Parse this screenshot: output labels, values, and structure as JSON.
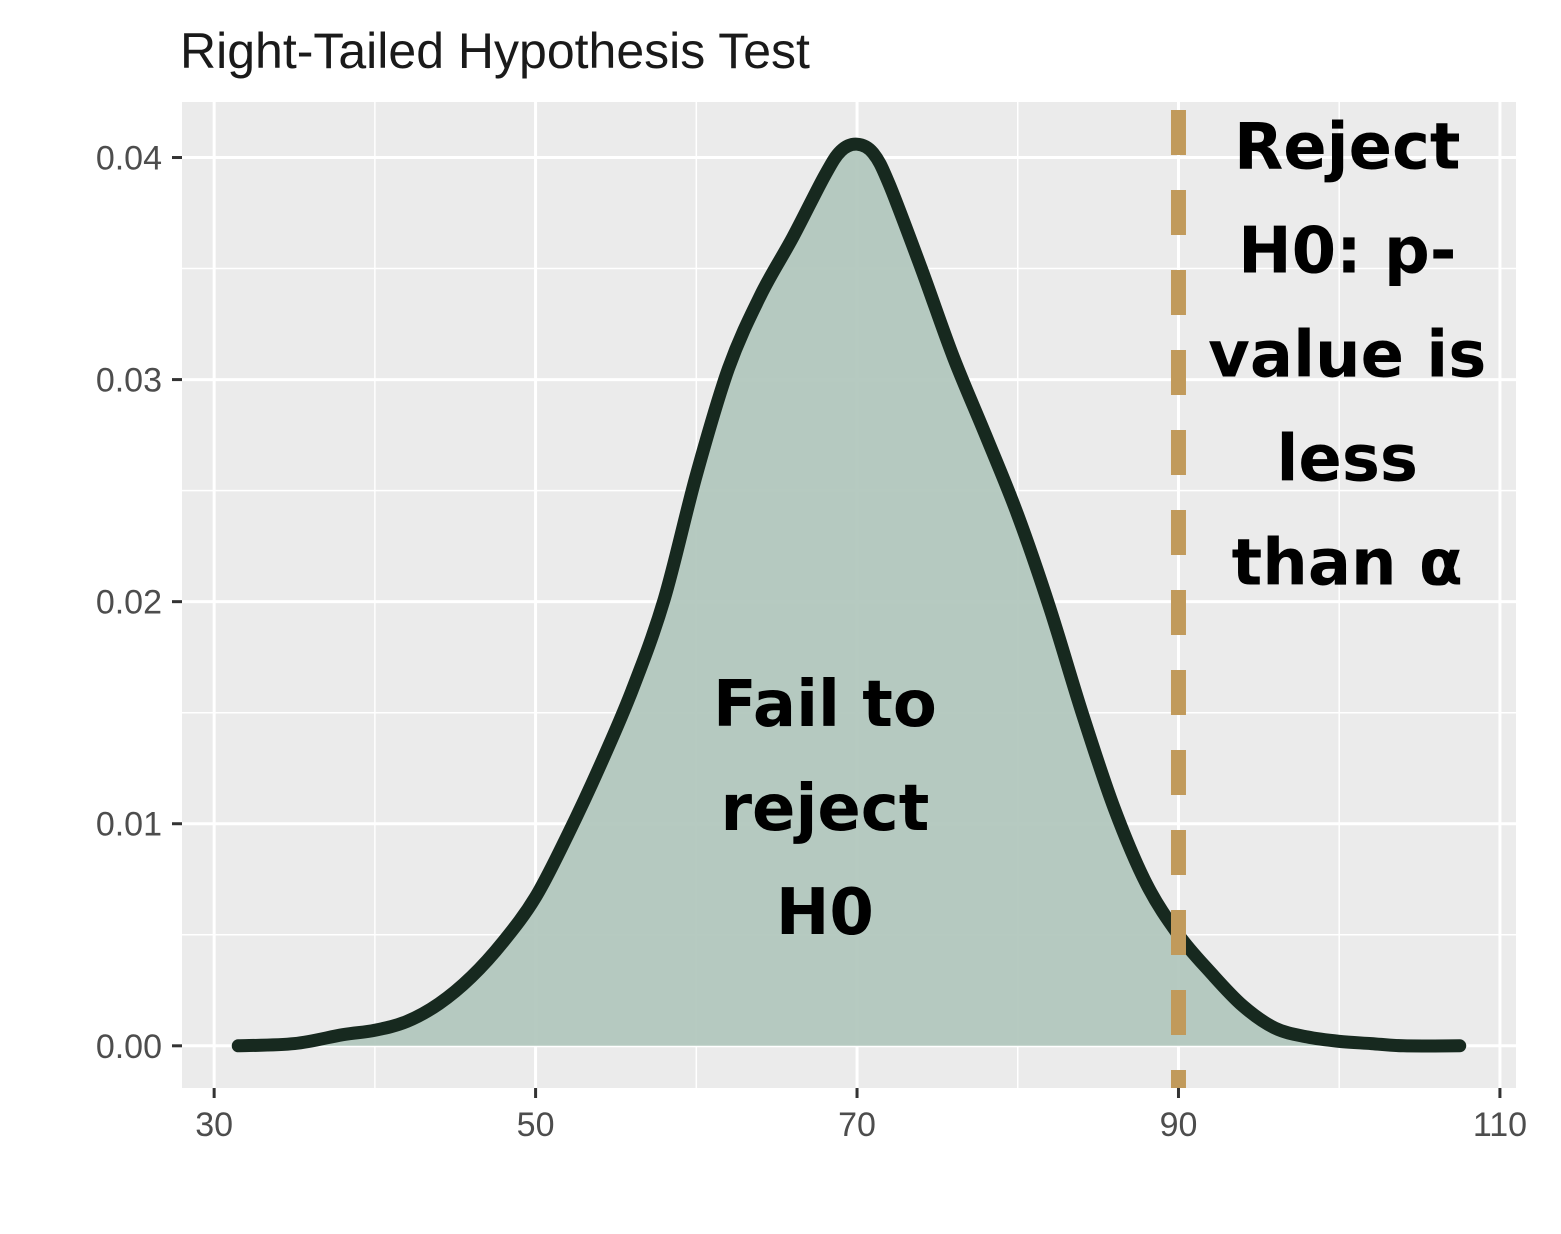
{
  "chart_data": {
    "type": "area",
    "title": "Right-Tailed Hypothesis Test",
    "xlabel": "",
    "ylabel": "",
    "xlim": [
      28,
      111
    ],
    "ylim": [
      -0.0019,
      0.0425
    ],
    "x_ticks": [
      "30",
      "50",
      "70",
      "90",
      "110"
    ],
    "y_ticks": [
      "0.00",
      "0.01",
      "0.02",
      "0.03",
      "0.04"
    ],
    "grid": true,
    "legend": "none",
    "series": [
      {
        "x": [
          31.5,
          35,
          38,
          40,
          42,
          44,
          46,
          48,
          50,
          52,
          54,
          56,
          58,
          60,
          62,
          64,
          66,
          68,
          69,
          70,
          71,
          72,
          74,
          76,
          78,
          80,
          82,
          84,
          86,
          88,
          90,
          92,
          94,
          96,
          98,
          100,
          102,
          104,
          107.5
        ],
        "y": [
          0.0,
          0.0001,
          0.0005,
          0.0007,
          0.0011,
          0.0019,
          0.0031,
          0.0047,
          0.0067,
          0.0095,
          0.0126,
          0.016,
          0.0201,
          0.0257,
          0.0305,
          0.0338,
          0.0364,
          0.0392,
          0.0403,
          0.0406,
          0.0402,
          0.0388,
          0.035,
          0.031,
          0.0275,
          0.0239,
          0.0197,
          0.015,
          0.0107,
          0.0073,
          0.005,
          0.0033,
          0.0018,
          0.0008,
          0.0004,
          0.0002,
          0.0001,
          0.0,
          0.0
        ]
      }
    ],
    "critical_value": 90,
    "annotations": [
      {
        "lines": [
          "Fail to",
          "reject",
          "H0"
        ],
        "x": 68,
        "y": 0.0144
      },
      {
        "lines": [
          "Reject",
          "H0: p-",
          "value is",
          "less",
          "than α"
        ],
        "x": 100.5,
        "y": 0.0395
      }
    ],
    "colors": {
      "panel": "#ebebeb",
      "grid": "#ffffff",
      "fill": "#b2c7be",
      "line": "#17291f",
      "critical_line": "#c19a5b"
    }
  }
}
